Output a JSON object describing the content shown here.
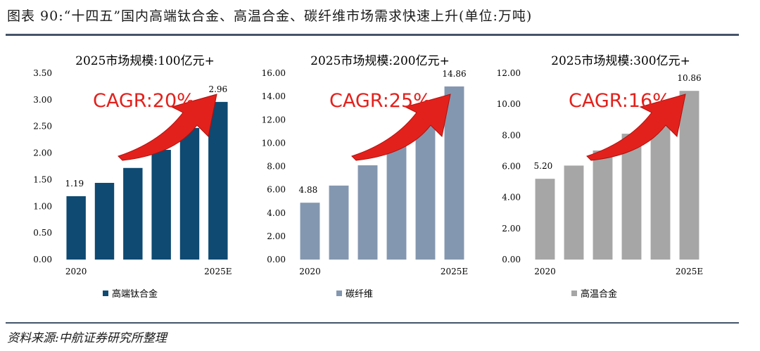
{
  "header": {
    "title": "图表 90:“十四五”国内高端钛合金、高温合金、碳纤维市场需求快速上升(单位:万吨)"
  },
  "footer": {
    "source": "资料来源:中航证券研究所整理"
  },
  "chart_data": [
    {
      "type": "bar",
      "title": "2025市场规模:100亿元+",
      "series": [
        {
          "name": "高端钛合金",
          "values": [
            1.19,
            1.44,
            1.72,
            2.06,
            2.47,
            2.96
          ]
        }
      ],
      "categories": [
        "2020",
        "",
        "",
        "",
        "",
        "2025E"
      ],
      "data_labels": [
        "1.19",
        "",
        "",
        "",
        "",
        "2.96"
      ],
      "ylim": [
        0,
        3.5
      ],
      "yticks": [
        "0.00",
        "0.50",
        "1.00",
        "1.50",
        "2.00",
        "2.50",
        "3.00",
        "3.50"
      ],
      "annotation": "CAGR:20%",
      "color": "#0e4a72",
      "legend": "bottom"
    },
    {
      "type": "bar",
      "title": "2025市场规模:200亿元+",
      "series": [
        {
          "name": "碳纤维",
          "values": [
            4.88,
            6.35,
            8.09,
            10.13,
            12.36,
            14.86
          ]
        }
      ],
      "categories": [
        "2020",
        "",
        "",
        "",
        "",
        "2025E"
      ],
      "data_labels": [
        "4.88",
        "",
        "",
        "",
        "",
        "14.86"
      ],
      "ylim": [
        0,
        16
      ],
      "yticks": [
        "0.00",
        "2.00",
        "4.00",
        "6.00",
        "8.00",
        "10.00",
        "12.00",
        "14.00",
        "16.00"
      ],
      "annotation": "CAGR:25%",
      "color": "#8497b0",
      "legend": "bottom"
    },
    {
      "type": "bar",
      "title": "2025市场规模:300亿元+",
      "series": [
        {
          "name": "高温合金",
          "values": [
            5.2,
            6.05,
            7.02,
            8.1,
            9.38,
            10.86
          ]
        }
      ],
      "categories": [
        "2020",
        "",
        "",
        "",
        "",
        "2025E"
      ],
      "data_labels": [
        "5.20",
        "",
        "",
        "",
        "",
        "10.86"
      ],
      "ylim": [
        0,
        12
      ],
      "yticks": [
        "0.00",
        "2.00",
        "4.00",
        "6.00",
        "8.00",
        "10.00",
        "12.00"
      ],
      "annotation": "CAGR:16%",
      "color": "#a6a6a6",
      "legend": "bottom"
    }
  ]
}
